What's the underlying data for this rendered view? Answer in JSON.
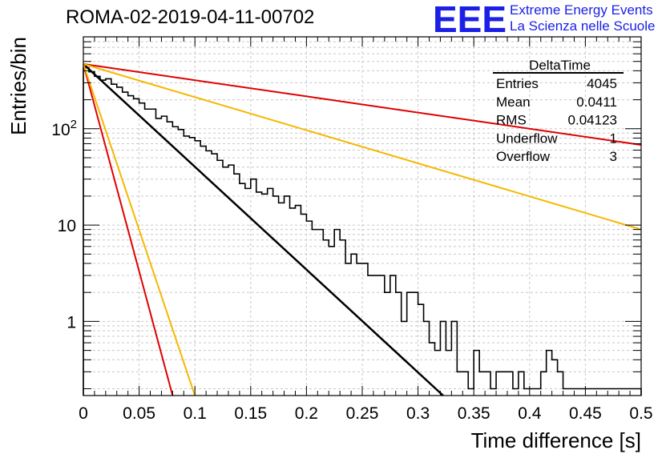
{
  "header": {
    "title": "ROMA-02-2019-04-11-00702",
    "logo_text": "EEE",
    "tagline_1": "Extreme Energy Events",
    "tagline_2": "La Scienza nelle Scuole"
  },
  "stats_box": {
    "name": "DeltaTime",
    "rows": [
      {
        "label": "Entries",
        "value": "4045"
      },
      {
        "label": "Mean",
        "value": "0.0411"
      },
      {
        "label": "RMS",
        "value": "0.04123"
      },
      {
        "label": "Underflow",
        "value": "1"
      },
      {
        "label": "Overflow",
        "value": "3"
      }
    ]
  },
  "chart_data": {
    "type": "line",
    "title": "ROMA-02-2019-04-11-00702",
    "xlabel": "Time difference [s]",
    "ylabel": "Entries/bin",
    "xlim": [
      0,
      0.5
    ],
    "ylim": [
      0.17,
      900
    ],
    "yscale": "log",
    "grid": true,
    "xticks": [
      0,
      0.05,
      0.1,
      0.15,
      0.2,
      0.25,
      0.3,
      0.35,
      0.4,
      0.45,
      0.5
    ],
    "xtick_labels": [
      "0",
      "0.05",
      "0.1",
      "0.15",
      "0.2",
      "0.25",
      "0.3",
      "0.35",
      "0.4",
      "0.45",
      "0.5"
    ],
    "yticks": [
      1,
      10,
      100
    ],
    "ytick_labels": [
      "1",
      "10",
      "10^2"
    ],
    "histogram": {
      "bin_width": 0.005,
      "color": "#000000",
      "counts": [
        430,
        390,
        350,
        320,
        330,
        290,
        270,
        240,
        220,
        205,
        185,
        160,
        160,
        128,
        135,
        118,
        105,
        98,
        84,
        81,
        75,
        66,
        59,
        55,
        47,
        40,
        42,
        34,
        27,
        24,
        30,
        22,
        21,
        24,
        20,
        17,
        20,
        15,
        16,
        13,
        11,
        9,
        9,
        7,
        6,
        9,
        7,
        4,
        5,
        4,
        4,
        3,
        3,
        3,
        2,
        3,
        2,
        1,
        2,
        2,
        1.5,
        1,
        0.6,
        0.5,
        1,
        0.5,
        1,
        0.3,
        0.3,
        0.2,
        0.5,
        0.3,
        0.3,
        0.2,
        0.3,
        0.3,
        0.3,
        0.2,
        0.3,
        0.2,
        0.2,
        0.2,
        0.3,
        0.5,
        0.4,
        0.3,
        0.2,
        0.2,
        0.2,
        0.2,
        0.2,
        0.2,
        0.2,
        0.2,
        0.2,
        0.2,
        0.2,
        0.2,
        0.2,
        0.2
      ]
    },
    "series": [
      {
        "color": "#000000",
        "points": [
          [
            0,
            470
          ],
          [
            0.3225,
            0.17
          ]
        ],
        "width": 2.5
      },
      {
        "color": "#e00000",
        "points": [
          [
            0,
            470
          ],
          [
            0.5,
            68
          ]
        ],
        "width": 2
      },
      {
        "color": "#f5b800",
        "points": [
          [
            0,
            470
          ],
          [
            0.5,
            9
          ]
        ],
        "width": 2
      },
      {
        "color": "#e00000",
        "points": [
          [
            0,
            470
          ],
          [
            0.08,
            0.17
          ]
        ],
        "width": 2
      },
      {
        "color": "#f5b800",
        "points": [
          [
            0,
            470
          ],
          [
            0.1,
            0.17
          ]
        ],
        "width": 2
      }
    ]
  }
}
